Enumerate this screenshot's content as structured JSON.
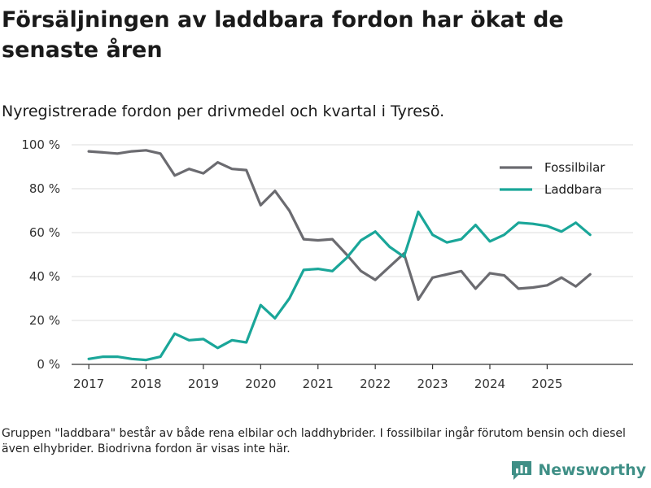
{
  "title": "Försäljningen av laddbara fordon har ökat de senaste åren",
  "subtitle": "Nyregistrerade fordon per drivmedel och kvartal i Tyresö.",
  "note": "Gruppen \"laddbara\" består av både rena elbilar och laddhybrider. I fossilbilar ingår förutom bensin och diesel även elhybrider. Biodrivna fordon är visas inte här.",
  "brand": {
    "name": "Newsworthy",
    "icon": "bar-chart-logo-icon",
    "color": "#3f8f86"
  },
  "chart_data": {
    "type": "line",
    "title": "Nyregistrerade fordon per drivmedel och kvartal i Tyresö.",
    "xlabel": "",
    "ylabel": "",
    "x": [
      2017.0,
      2017.25,
      2017.5,
      2017.75,
      2018.0,
      2018.25,
      2018.5,
      2018.75,
      2019.0,
      2019.25,
      2019.5,
      2019.75,
      2020.0,
      2020.25,
      2020.5,
      2020.75,
      2021.0,
      2021.25,
      2021.5,
      2021.75,
      2022.0,
      2022.25,
      2022.5,
      2022.75,
      2023.0,
      2023.25,
      2023.5,
      2023.75,
      2024.0,
      2024.25,
      2024.5,
      2024.75,
      2025.0,
      2025.25,
      2025.5,
      2025.75
    ],
    "series": [
      {
        "name": "Fossilbilar",
        "color": "#6b6b70",
        "values": [
          97,
          96.5,
          96,
          97,
          97.5,
          96,
          86,
          89,
          87,
          92,
          89,
          88.5,
          72.5,
          79,
          70,
          57,
          56.5,
          57,
          50,
          42.5,
          38.5,
          44.5,
          50.5,
          29.5,
          39.5,
          41,
          42.5,
          34.5,
          41.5,
          40.5,
          34.5,
          35,
          36,
          39.5,
          35.5,
          41
        ]
      },
      {
        "name": "Laddbara",
        "color": "#1aa699",
        "values": [
          2.5,
          3.5,
          3.5,
          2.5,
          2,
          3.5,
          14,
          11,
          11.5,
          7.5,
          11,
          10,
          27,
          21,
          30,
          43,
          43.5,
          42.5,
          48.5,
          56.5,
          60.5,
          53.5,
          49,
          69.5,
          59,
          55.5,
          57,
          63.5,
          56,
          59,
          64.5,
          64,
          63,
          60.5,
          64.5,
          59
        ]
      }
    ],
    "xticks": [
      2017,
      2018,
      2019,
      2020,
      2021,
      2022,
      2023,
      2024,
      2025
    ],
    "xtick_labels": [
      "2017",
      "2018",
      "2019",
      "2020",
      "2021",
      "2022",
      "2023",
      "2024",
      "2025"
    ],
    "yticks": [
      0,
      20,
      40,
      60,
      80,
      100
    ],
    "ytick_labels": [
      "0 %",
      "20 %",
      "40 %",
      "60 %",
      "80 %",
      "100 %"
    ],
    "xlim": [
      2016.7,
      2026.5
    ],
    "ylim": [
      0,
      100
    ],
    "grid": true,
    "legend": {
      "position": "top-right",
      "entries": [
        "Fossilbilar",
        "Laddbara"
      ]
    }
  }
}
